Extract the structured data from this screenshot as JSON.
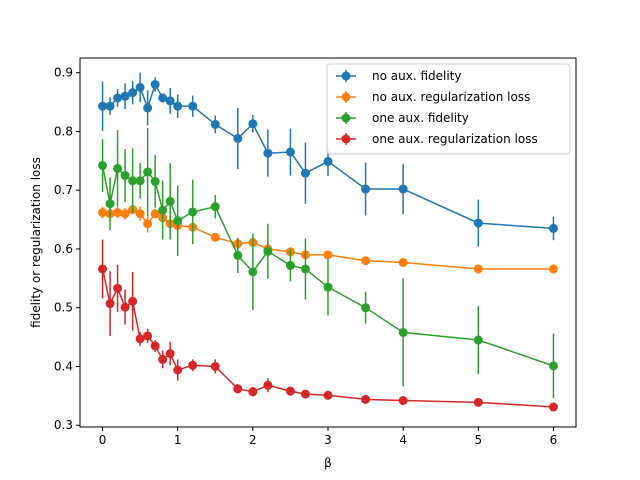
{
  "chart_data": {
    "type": "line",
    "title": "",
    "xlabel": "β",
    "ylabel": "fidelity or regularization loss",
    "xlim": [
      -0.3,
      6.3
    ],
    "ylim": [
      0.297,
      0.925
    ],
    "xticks": [
      0,
      1,
      2,
      3,
      4,
      5,
      6
    ],
    "xtick_labels": [
      "0",
      "1",
      "2",
      "3",
      "4",
      "5",
      "6"
    ],
    "yticks": [
      0.3,
      0.4,
      0.5,
      0.6,
      0.7,
      0.8,
      0.9
    ],
    "ytick_labels": [
      "0.3",
      "0.4",
      "0.5",
      "0.6",
      "0.7",
      "0.8",
      "0.9"
    ],
    "grid": false,
    "legend_position": "top-right",
    "x": [
      0,
      0.1,
      0.2,
      0.3,
      0.4,
      0.5,
      0.6,
      0.7,
      0.8,
      0.9,
      1.0,
      1.2,
      1.5,
      1.8,
      2.0,
      2.2,
      2.5,
      2.7,
      3.0,
      3.5,
      4.0,
      5.0,
      6.0
    ],
    "series": [
      {
        "name": "no aux. fidelity",
        "color": "#1f77b4",
        "values": [
          0.843,
          0.843,
          0.857,
          0.86,
          0.866,
          0.875,
          0.84,
          0.88,
          0.857,
          0.852,
          0.843,
          0.843,
          0.812,
          0.788,
          0.813,
          0.763,
          0.765,
          0.729,
          0.749,
          0.702,
          0.702,
          0.644,
          0.635
        ],
        "errors": [
          0.042,
          0.015,
          0.015,
          0.022,
          0.02,
          0.025,
          0.03,
          0.012,
          0.007,
          0.022,
          0.02,
          0.018,
          0.015,
          0.052,
          0.015,
          0.04,
          0.04,
          0.052,
          0.025,
          0.045,
          0.043,
          0.04,
          0.02
        ]
      },
      {
        "name": "no aux. regularization loss",
        "color": "#ff7f0e",
        "values": [
          0.662,
          0.66,
          0.662,
          0.66,
          0.667,
          0.66,
          0.643,
          0.66,
          0.653,
          0.643,
          0.64,
          0.637,
          0.62,
          0.609,
          0.611,
          0.6,
          0.595,
          0.59,
          0.59,
          0.58,
          0.577,
          0.566,
          0.566
        ],
        "errors": [
          0.01,
          0.012,
          0.01,
          0.01,
          0.008,
          0.012,
          0.015,
          0.008,
          0.008,
          0.012,
          0.015,
          0.008,
          0.005,
          0.008,
          0.008,
          0.012,
          0.005,
          0.005,
          0.006,
          0.005,
          0.005,
          0.005,
          0.005
        ]
      },
      {
        "name": "one aux. fidelity",
        "color": "#2ca02c",
        "values": [
          0.742,
          0.677,
          0.737,
          0.725,
          0.716,
          0.716,
          0.731,
          0.715,
          0.666,
          0.681,
          0.648,
          0.663,
          0.672,
          0.589,
          0.561,
          0.596,
          0.572,
          0.566,
          0.535,
          0.5,
          0.458,
          0.445,
          0.401
        ],
        "errors": [
          0.045,
          0.045,
          0.065,
          0.045,
          0.055,
          0.03,
          0.075,
          0.045,
          0.05,
          0.065,
          0.06,
          0.055,
          0.02,
          0.03,
          0.065,
          0.047,
          0.027,
          0.052,
          0.048,
          0.027,
          0.092,
          0.058,
          0.055
        ]
      },
      {
        "name": "one aux. regularization loss",
        "color": "#d62728",
        "values": [
          0.566,
          0.507,
          0.533,
          0.501,
          0.511,
          0.447,
          0.452,
          0.435,
          0.412,
          0.422,
          0.394,
          0.402,
          0.4,
          0.362,
          0.357,
          0.368,
          0.358,
          0.353,
          0.351,
          0.344,
          0.342,
          0.339,
          0.331
        ],
        "errors": [
          0.05,
          0.055,
          0.04,
          0.03,
          0.05,
          0.012,
          0.012,
          0.01,
          0.015,
          0.02,
          0.018,
          0.01,
          0.012,
          0.008,
          0.008,
          0.012,
          0.008,
          0.006,
          0.005,
          0.005,
          0.005,
          0.007,
          0.005
        ]
      }
    ]
  }
}
